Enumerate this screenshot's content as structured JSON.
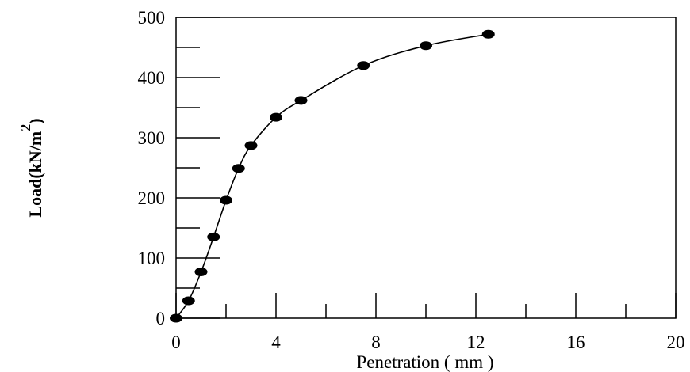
{
  "chart_data": {
    "type": "line",
    "title": "",
    "xlabel": "Penetration ( mm )",
    "ylabel": "Load(kN/m",
    "ylabel_superscript": "2",
    "ylabel_close": ")",
    "xlim": [
      0,
      20
    ],
    "ylim": [
      0,
      500
    ],
    "x_ticks": [
      "0",
      "4",
      "8",
      "12",
      "16",
      "20"
    ],
    "y_ticks": [
      "0",
      "100",
      "200",
      "300",
      "400",
      "500"
    ],
    "grid": false,
    "legend": "none",
    "marker": "filled-ellipse",
    "line_color": "#000000",
    "series": [
      {
        "x": [
          0,
          0.5,
          1,
          1.5,
          2,
          2.5,
          3,
          4,
          5,
          7.5,
          10,
          12.5
        ],
        "y": [
          0,
          29,
          77,
          135,
          196,
          249,
          287,
          334,
          362,
          420,
          453,
          472
        ]
      }
    ]
  }
}
